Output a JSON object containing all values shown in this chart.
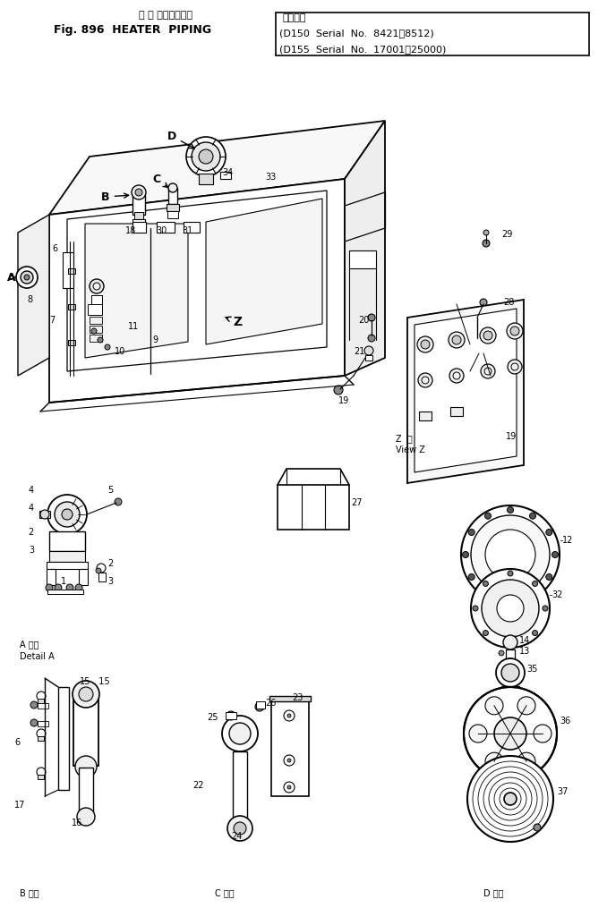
{
  "bg_color": "#ffffff",
  "title_jp": "ヒ ー タパイピング",
  "title_en": "Fig. 896  HEATER  PIPING",
  "applicable_jp": "適用号機",
  "serial1": "D150  Serial  No.  8421～8512",
  "serial2": "D155  Serial  No.  17001～25000",
  "detail_a_jp": "A 詳細",
  "detail_a_en": "Detail A",
  "detail_b_jp": "B 詳細",
  "detail_c_jp": "C 詳細",
  "detail_d_jp": "D 詳細",
  "view_z_jp": "Z  横",
  "view_z_en": "View Z"
}
